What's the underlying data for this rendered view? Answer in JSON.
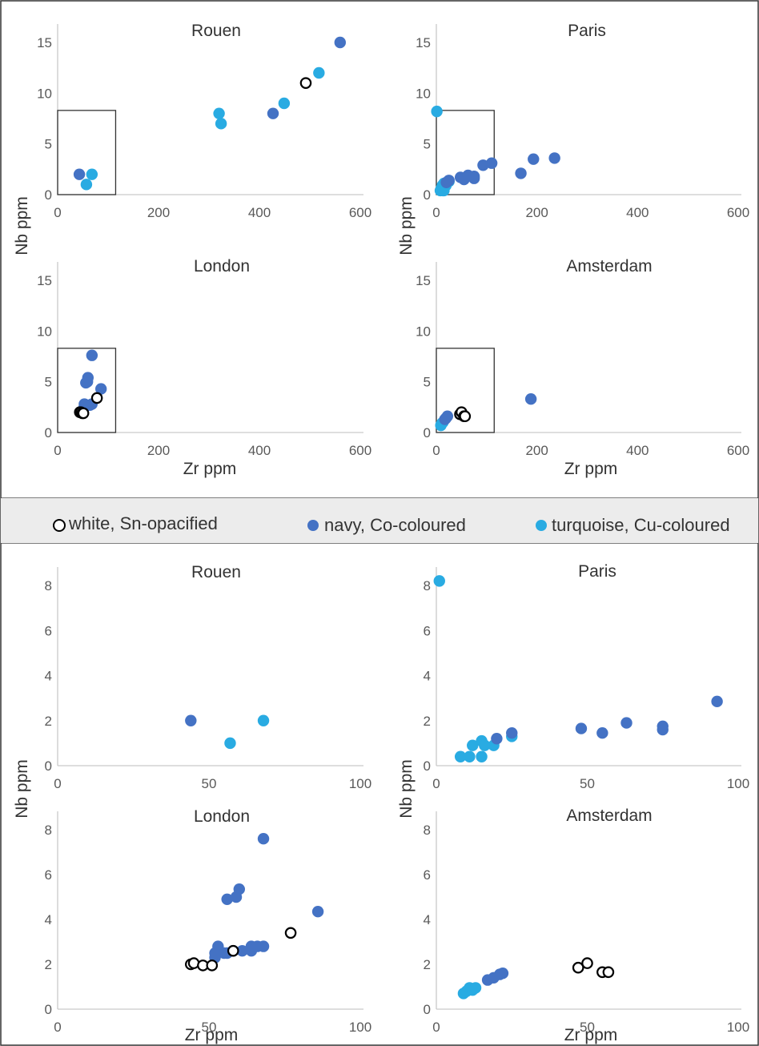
{
  "colors": {
    "white_series_stroke": "#000000",
    "navy_series": "#4472c4",
    "turquoise_series": "#29abe2",
    "legend_band": "#ececec",
    "frame": "#333333"
  },
  "axis_labels": {
    "x": "Zr ppm",
    "y": "Nb ppm"
  },
  "legend": {
    "items": [
      {
        "label": "white, Sn-opacified",
        "series": "white"
      },
      {
        "label": "navy, Co-coloured",
        "series": "navy"
      },
      {
        "label": "turquoise, Cu-coloured",
        "series": "turquoise"
      }
    ]
  },
  "chart_data": [
    {
      "type": "scatter",
      "title": "Rouen",
      "xlim": [
        0,
        600
      ],
      "ylim": [
        0,
        15
      ],
      "xticks": [
        0,
        200,
        400,
        600
      ],
      "yticks": [
        0,
        5,
        10,
        15
      ],
      "zoom_box": {
        "x": [
          0,
          115
        ],
        "y": [
          0,
          8.3
        ]
      },
      "series": [
        {
          "name": "white, Sn-opacified",
          "points": [
            [
              492,
              11
            ]
          ]
        },
        {
          "name": "navy, Co-coloured",
          "points": [
            [
              43,
              2
            ],
            [
              427,
              8
            ],
            [
              560,
              15
            ]
          ]
        },
        {
          "name": "turquoise, Cu-coloured",
          "points": [
            [
              57,
              1
            ],
            [
              68,
              2
            ],
            [
              320,
              8
            ],
            [
              324,
              7
            ],
            [
              449,
              9
            ],
            [
              518,
              12
            ]
          ]
        }
      ]
    },
    {
      "type": "scatter",
      "title": "Paris",
      "xlim": [
        0,
        600
      ],
      "ylim": [
        0,
        15
      ],
      "xticks": [
        0,
        200,
        400,
        600
      ],
      "yticks": [
        0,
        5,
        10,
        15
      ],
      "zoom_box": {
        "x": [
          0,
          115
        ],
        "y": [
          0,
          8.3
        ]
      },
      "series": [
        {
          "name": "white, Sn-opacified",
          "points": []
        },
        {
          "name": "navy, Co-coloured",
          "points": [
            [
              20,
              1.2
            ],
            [
              25,
              1.4
            ],
            [
              48,
              1.7
            ],
            [
              55,
              1.5
            ],
            [
              63,
              1.9
            ],
            [
              75,
              1.8
            ],
            [
              75,
              1.6
            ],
            [
              93,
              2.9
            ],
            [
              110,
              3.1
            ],
            [
              168,
              2.1
            ],
            [
              193,
              3.5
            ],
            [
              235,
              3.6
            ]
          ]
        },
        {
          "name": "turquoise, Cu-coloured",
          "points": [
            [
              1,
              8.2
            ],
            [
              8,
              0.4
            ],
            [
              10,
              0.6
            ],
            [
              12,
              0.9
            ],
            [
              13,
              0.4
            ],
            [
              15,
              1.1
            ],
            [
              15,
              0.4
            ],
            [
              19,
              0.9
            ],
            [
              25,
              1.3
            ]
          ]
        }
      ]
    },
    {
      "type": "scatter",
      "title": "London",
      "xlim": [
        0,
        600
      ],
      "ylim": [
        0,
        15
      ],
      "xticks": [
        0,
        200,
        400,
        600
      ],
      "yticks": [
        0,
        5,
        10,
        15
      ],
      "zoom_box": {
        "x": [
          0,
          115
        ],
        "y": [
          0,
          8.3
        ]
      },
      "series": [
        {
          "name": "white, Sn-opacified",
          "points": [
            [
              44,
              2
            ],
            [
              46,
              2
            ],
            [
              49,
              1.9
            ],
            [
              51,
              1.9
            ],
            [
              78,
              3.4
            ]
          ]
        },
        {
          "name": "navy, Co-coloured",
          "points": [
            [
              52,
              2.4
            ],
            [
              53,
              2.8
            ],
            [
              56,
              4.9
            ],
            [
              59,
              5.0
            ],
            [
              60,
              5.4
            ],
            [
              64,
              2.7
            ],
            [
              68,
              7.6
            ],
            [
              68,
              2.8
            ],
            [
              86,
              4.3
            ]
          ]
        },
        {
          "name": "turquoise, Cu-coloured",
          "points": []
        }
      ]
    },
    {
      "type": "scatter",
      "title": "Amsterdam",
      "xlim": [
        0,
        600
      ],
      "ylim": [
        0,
        15
      ],
      "xticks": [
        0,
        200,
        400,
        600
      ],
      "yticks": [
        0,
        5,
        10,
        15
      ],
      "zoom_box": {
        "x": [
          0,
          115
        ],
        "y": [
          0,
          8.3
        ]
      },
      "series": [
        {
          "name": "white, Sn-opacified",
          "points": [
            [
              47,
              1.8
            ],
            [
              50,
              2.0
            ],
            [
              55,
              1.6
            ],
            [
              57,
              1.6
            ]
          ]
        },
        {
          "name": "navy, Co-coloured",
          "points": [
            [
              17,
              1.3
            ],
            [
              19,
              1.4
            ],
            [
              22,
              1.6
            ],
            [
              188,
              3.3
            ]
          ]
        },
        {
          "name": "turquoise, Cu-coloured",
          "points": [
            [
              9,
              0.7
            ],
            [
              11,
              0.9
            ],
            [
              13,
              1.0
            ]
          ]
        }
      ]
    },
    {
      "type": "scatter",
      "title": "Rouen",
      "xlim": [
        0,
        100
      ],
      "ylim": [
        0,
        8
      ],
      "xticks": [
        0,
        50,
        100
      ],
      "yticks": [
        0,
        2,
        4,
        6,
        8
      ],
      "series": [
        {
          "name": "white, Sn-opacified",
          "points": []
        },
        {
          "name": "navy, Co-coloured",
          "points": [
            [
              44,
              2
            ]
          ]
        },
        {
          "name": "turquoise, Cu-coloured",
          "points": [
            [
              57,
              1
            ],
            [
              68,
              2
            ]
          ]
        }
      ]
    },
    {
      "type": "scatter",
      "title": "Paris",
      "xlim": [
        0,
        100
      ],
      "ylim": [
        0,
        8
      ],
      "xticks": [
        0,
        50,
        100
      ],
      "yticks": [
        0,
        2,
        4,
        6,
        8
      ],
      "series": [
        {
          "name": "white, Sn-opacified",
          "points": []
        },
        {
          "name": "navy, Co-coloured",
          "points": [
            [
              20,
              1.2
            ],
            [
              25,
              1.45
            ],
            [
              48,
              1.65
            ],
            [
              55,
              1.45
            ],
            [
              63,
              1.9
            ],
            [
              75,
              1.75
            ],
            [
              75,
              1.6
            ],
            [
              93,
              2.85
            ]
          ]
        },
        {
          "name": "turquoise, Cu-coloured",
          "points": [
            [
              1,
              8.2
            ],
            [
              8,
              0.4
            ],
            [
              11,
              0.4
            ],
            [
              12,
              0.9
            ],
            [
              15,
              1.1
            ],
            [
              15,
              0.4
            ],
            [
              16,
              0.9
            ],
            [
              19,
              0.9
            ],
            [
              25,
              1.3
            ]
          ]
        }
      ]
    },
    {
      "type": "scatter",
      "title": "London",
      "xlim": [
        0,
        100
      ],
      "ylim": [
        0,
        8
      ],
      "xticks": [
        0,
        50,
        100
      ],
      "yticks": [
        0,
        2,
        4,
        6,
        8
      ],
      "series": [
        {
          "name": "white, Sn-opacified",
          "points": [
            [
              44,
              2
            ],
            [
              45,
              2.05
            ],
            [
              48,
              1.95
            ],
            [
              51,
              1.95
            ],
            [
              58,
              2.6
            ],
            [
              77,
              3.4
            ]
          ]
        },
        {
          "name": "navy, Co-coloured",
          "points": [
            [
              52,
              2.3
            ],
            [
              52,
              2.5
            ],
            [
              53,
              2.8
            ],
            [
              55,
              2.5
            ],
            [
              56,
              2.5
            ],
            [
              56,
              4.9
            ],
            [
              58,
              2.6
            ],
            [
              58,
              2.6
            ],
            [
              59,
              5.0
            ],
            [
              60,
              5.35
            ],
            [
              61,
              2.6
            ],
            [
              64,
              2.6
            ],
            [
              64,
              2.8
            ],
            [
              66,
              2.8
            ],
            [
              68,
              2.8
            ],
            [
              68,
              7.6
            ],
            [
              86,
              4.35
            ]
          ]
        },
        {
          "name": "turquoise, Cu-coloured",
          "points": []
        }
      ]
    },
    {
      "type": "scatter",
      "title": "Amsterdam",
      "xlim": [
        0,
        100
      ],
      "ylim": [
        0,
        8
      ],
      "xticks": [
        0,
        50,
        100
      ],
      "yticks": [
        0,
        2,
        4,
        6,
        8
      ],
      "series": [
        {
          "name": "white, Sn-opacified",
          "points": [
            [
              47,
              1.85
            ],
            [
              50,
              2.05
            ],
            [
              55,
              1.65
            ],
            [
              57,
              1.65
            ]
          ]
        },
        {
          "name": "navy, Co-coloured",
          "points": [
            [
              17,
              1.3
            ],
            [
              19,
              1.4
            ],
            [
              21,
              1.55
            ],
            [
              22,
              1.6
            ]
          ]
        },
        {
          "name": "turquoise, Cu-coloured",
          "points": [
            [
              9,
              0.7
            ],
            [
              10,
              0.8
            ],
            [
              11,
              0.95
            ],
            [
              12,
              0.85
            ],
            [
              13,
              0.95
            ]
          ]
        }
      ]
    }
  ]
}
